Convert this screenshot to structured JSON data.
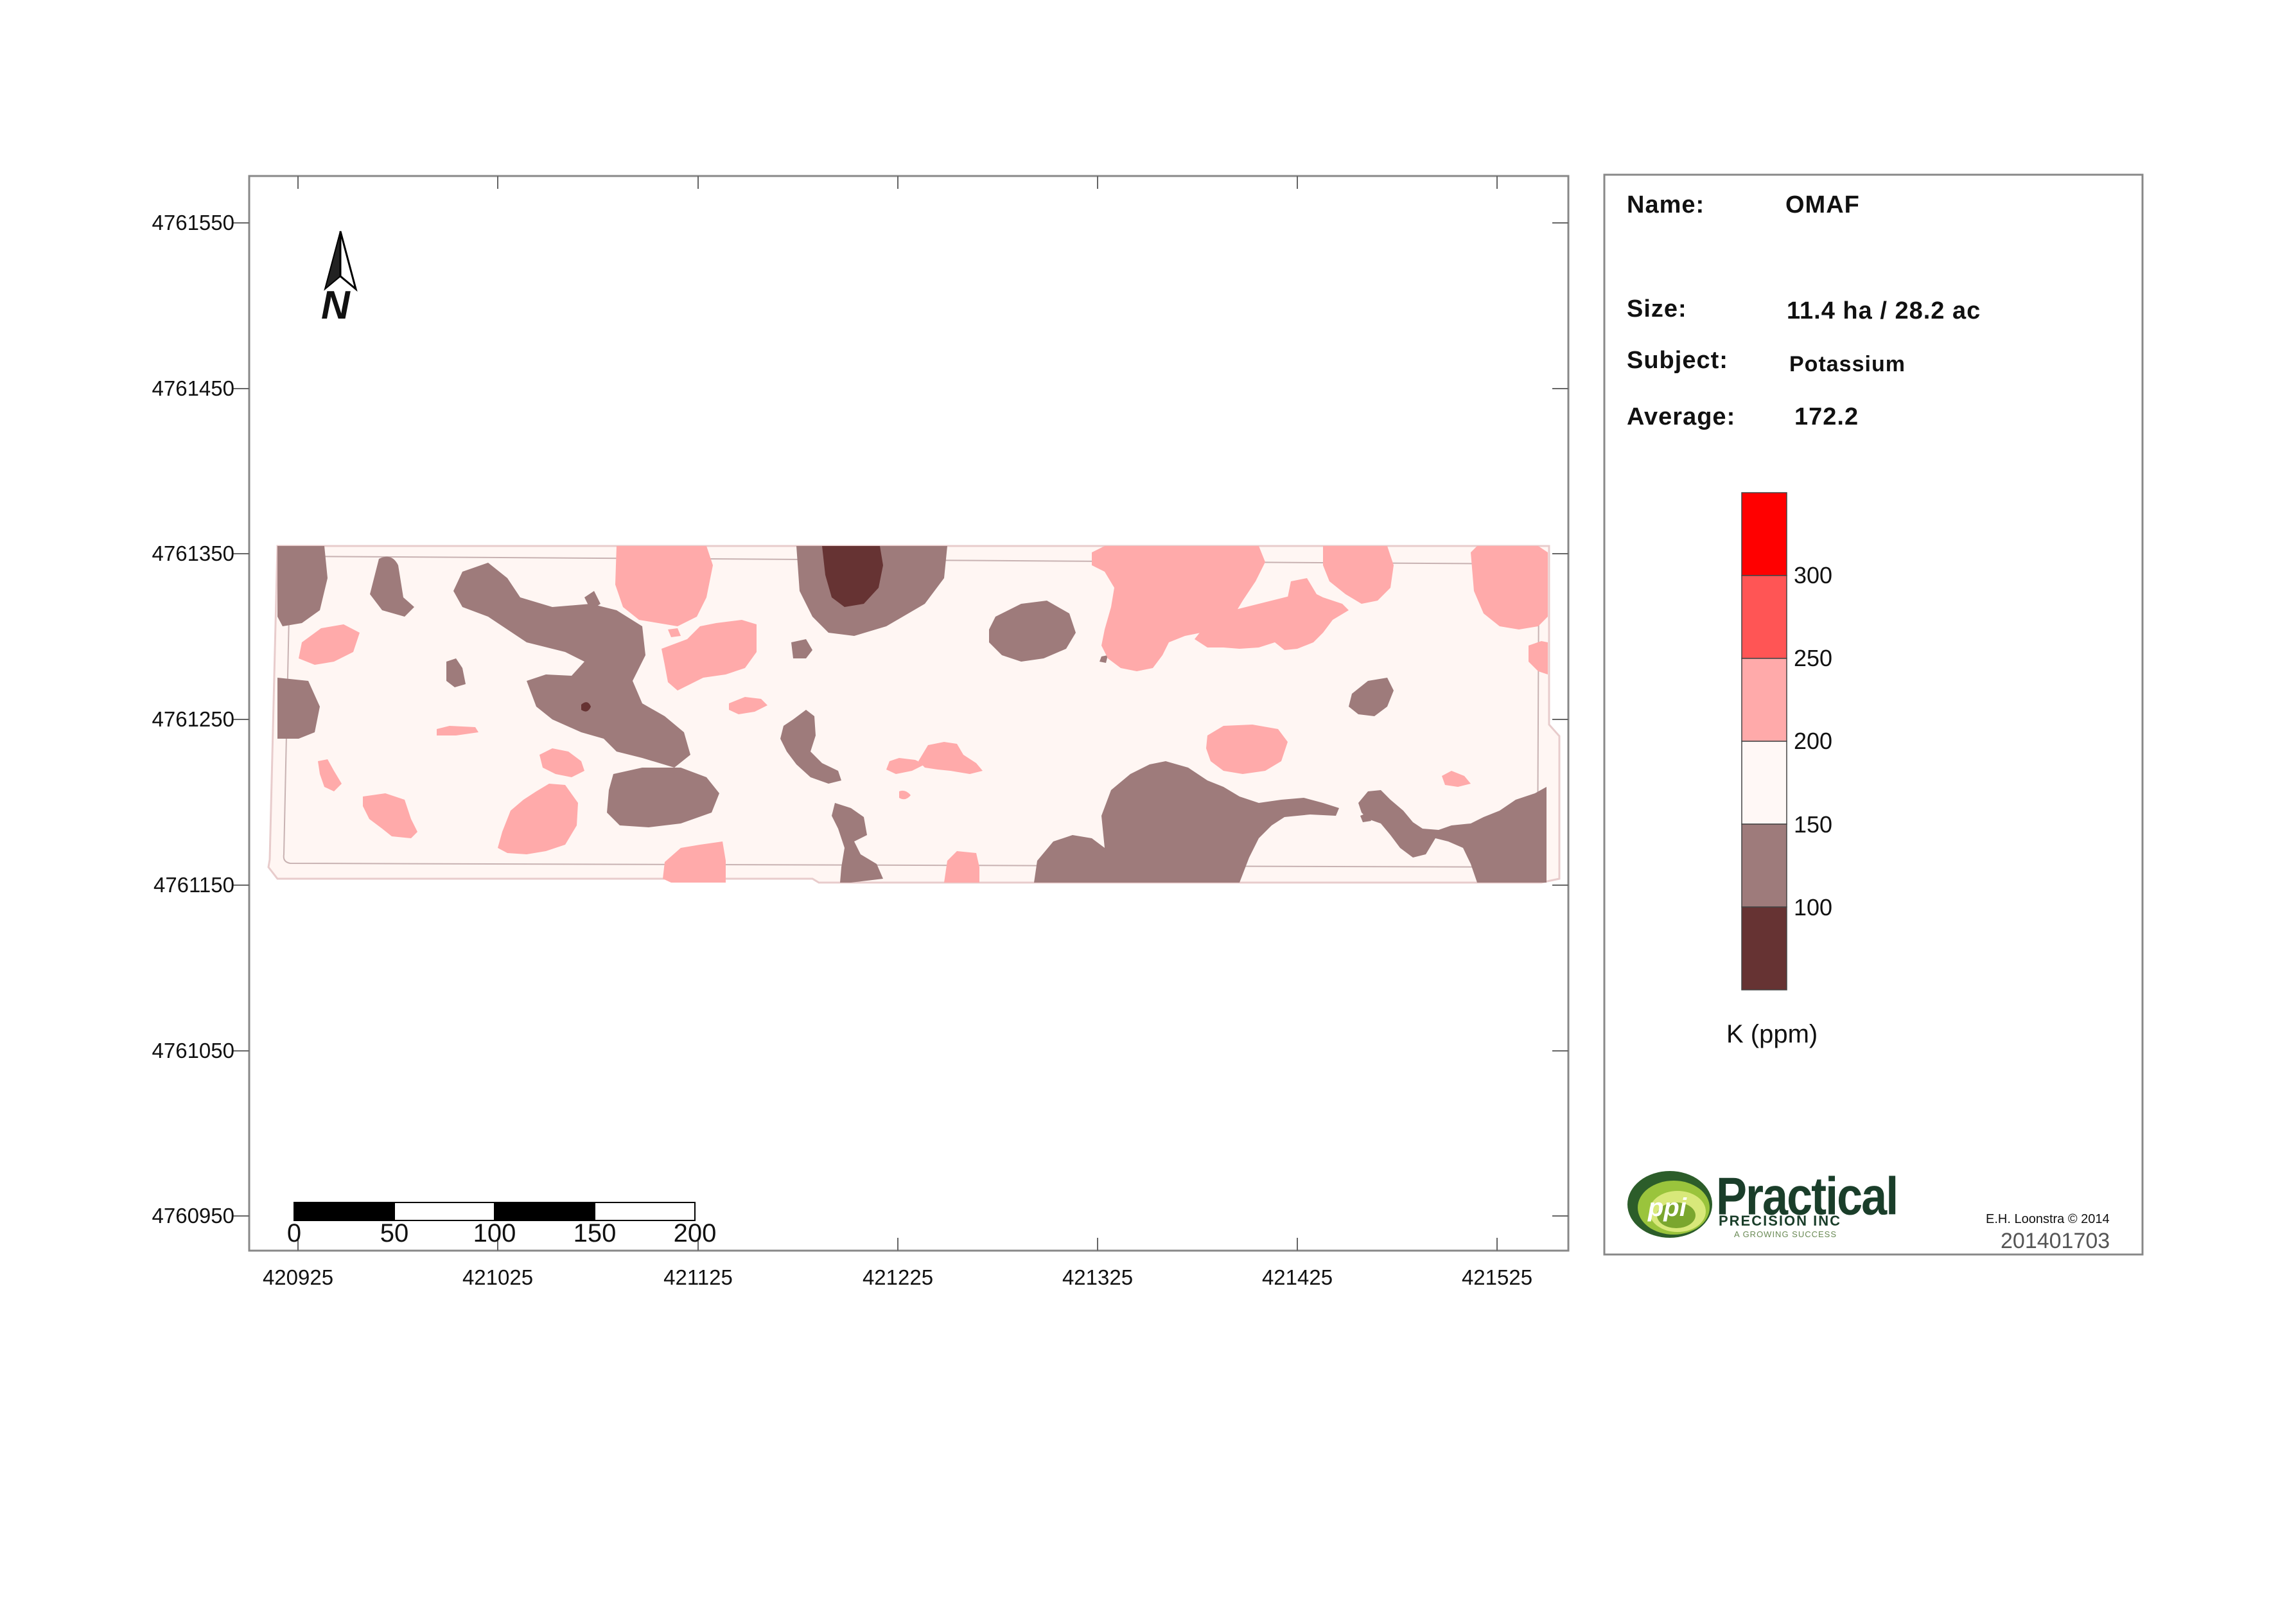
{
  "map": {
    "x_ticks": [
      "420925",
      "421025",
      "421125",
      "421225",
      "421325",
      "421425",
      "421525"
    ],
    "y_ticks": [
      "4761550",
      "4761450",
      "4761350",
      "4761250",
      "4761150",
      "4761050",
      "4760950"
    ],
    "north_label": "N",
    "scale_bar": {
      "labels": [
        "0",
        "50",
        "100",
        "150",
        "200"
      ]
    }
  },
  "info": {
    "name_label": "Name:",
    "name_value": "OMAF",
    "size_label": "Size:",
    "size_value": "11.4 ha / 28.2 ac",
    "subject_label": "Subject:",
    "subject_value": "Potassium",
    "average_label": "Average:",
    "average_value": "172.2"
  },
  "legend": {
    "title": "K (ppm)",
    "labels": [
      "300",
      "250",
      "200",
      "150",
      "100"
    ],
    "colors": [
      "#ff0000",
      "#ff5555",
      "#ffaaaa",
      "#fff8f6",
      "#9e7b7b",
      "#663333"
    ]
  },
  "footer": {
    "logo_text": "Practical",
    "logo_sub": "PRECISION INC",
    "logo_tagline": "A GROWING SUCCESS",
    "logo_mark": "ppi",
    "copyright": "E.H. Loonstra © 2014",
    "map_id": "201401703"
  }
}
